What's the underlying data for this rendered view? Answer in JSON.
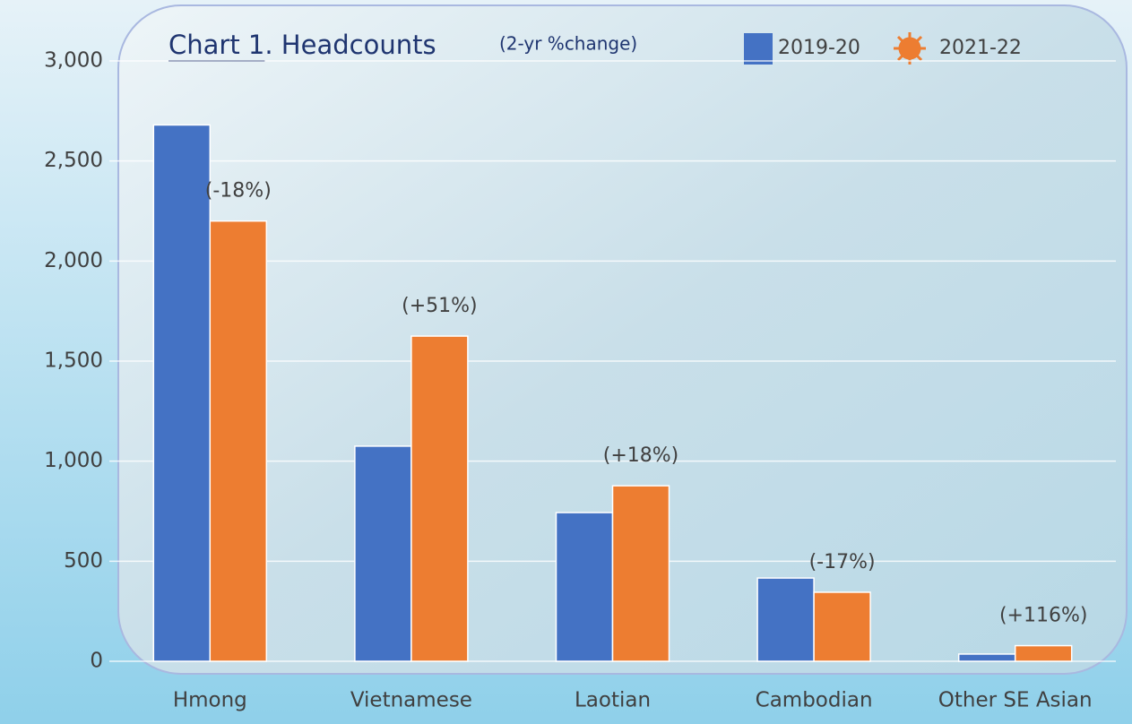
{
  "chart_data": {
    "type": "bar",
    "title": "Chart 1. Headcounts",
    "subtitle": "(2-yr %change)",
    "categories": [
      "Hmong",
      "Vietnamese",
      "Laotian",
      "Cambodian",
      "Other SE Asian"
    ],
    "series": [
      {
        "name": "2019-20",
        "color": "#4472c4",
        "values": [
          2680,
          1075,
          743,
          416,
          36
        ]
      },
      {
        "name": "2021-22",
        "color": "#ed7d31",
        "values": [
          2200,
          1625,
          877,
          345,
          78
        ]
      }
    ],
    "annotations": [
      "(-18%)",
      "(+51%)",
      "(+18%)",
      "(-17%)",
      "(+116%)"
    ],
    "ylim": [
      0,
      3000
    ],
    "yticks": [
      0,
      500,
      {
        "value": 1000,
        "label": "1,000"
      },
      {
        "value": 1500,
        "label": "1,500"
      },
      {
        "value": 2000,
        "label": "2,000"
      },
      {
        "value": 2500,
        "label": "2,500"
      },
      {
        "value": 3000,
        "label": "3,000"
      }
    ],
    "grid": true
  }
}
